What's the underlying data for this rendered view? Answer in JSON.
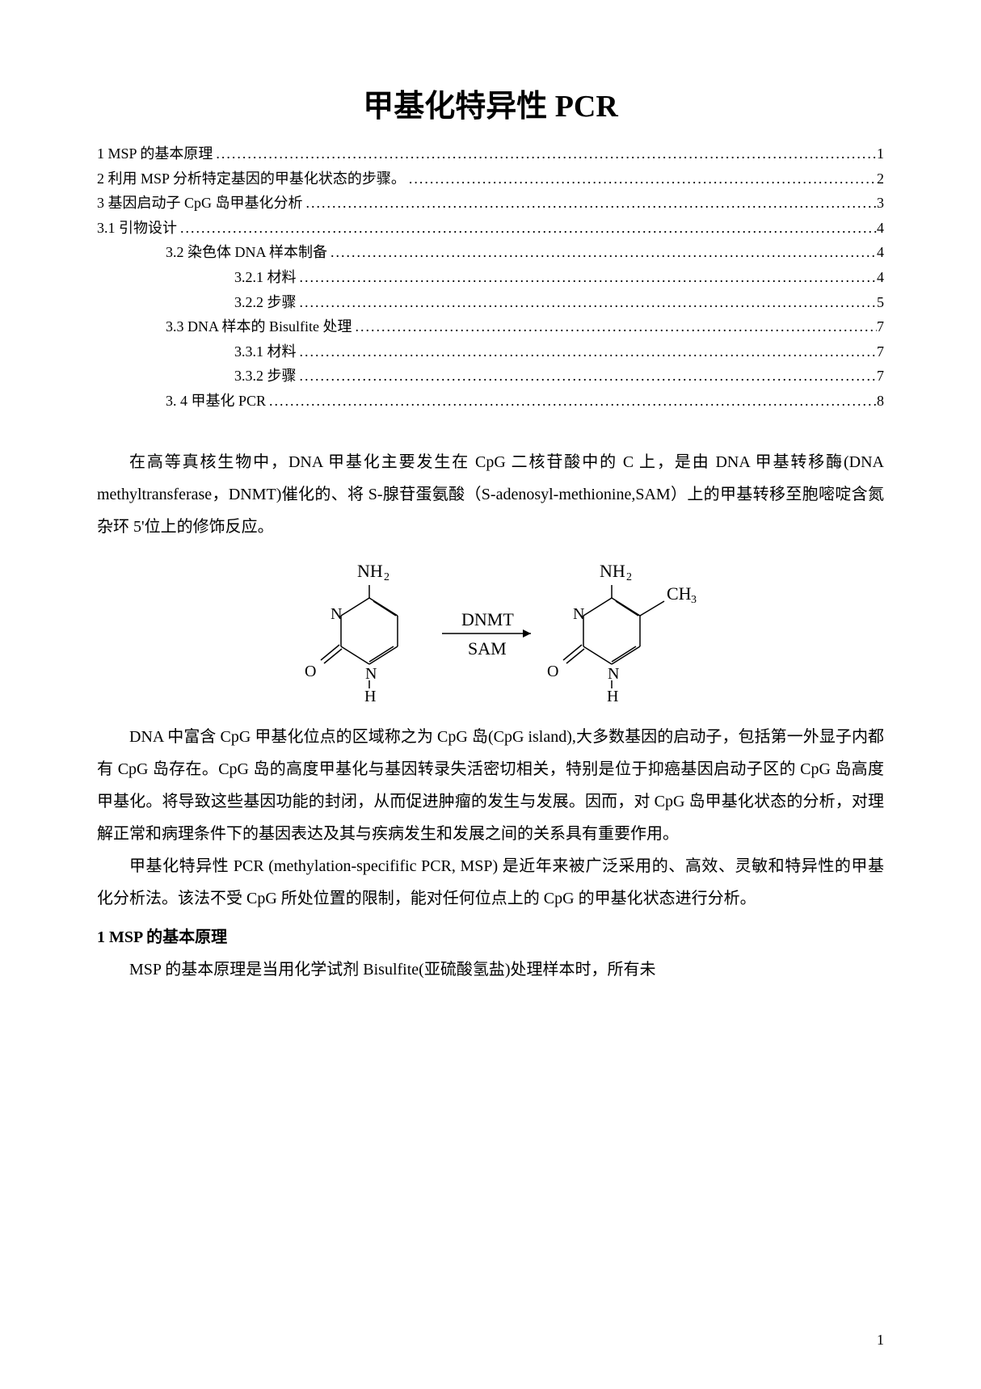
{
  "title_cn": "甲基化特异性 ",
  "title_en": "PCR",
  "toc": [
    {
      "level": 1,
      "label": "1 MSP 的基本原理",
      "page": "1"
    },
    {
      "level": 1,
      "label": "2 利用 MSP 分析特定基因的甲基化状态的步骤。",
      "page": "2"
    },
    {
      "level": 1,
      "label": "3  基因启动子 CpG 岛甲基化分析",
      "page": "3"
    },
    {
      "level": 1,
      "label": "3.1  引物设计",
      "page": "4"
    },
    {
      "level": 2,
      "label": "3.2 染色体 DNA 样本制备",
      "page": "4"
    },
    {
      "level": 3,
      "label": "3.2.1  材料",
      "page": "4"
    },
    {
      "level": 3,
      "label": "3.2.2 步骤",
      "page": "5"
    },
    {
      "level": 2,
      "label": "3.3 DNA 样本的 Bisulfite 处理",
      "page": "7"
    },
    {
      "level": 3,
      "label": "3.3.1 材料",
      "page": "7"
    },
    {
      "level": 3,
      "label": "3.3.2 步骤",
      "page": "7"
    },
    {
      "level": 2,
      "label": "3. 4  甲基化 PCR",
      "page": "8"
    }
  ],
  "para1": "在高等真核生物中，DNA 甲基化主要发生在 CpG 二核苷酸中的 C 上，是由 DNA 甲基转移酶(DNA methyltransferase，DNMT)催化的、将 S-腺苷蛋氨酸（S-adenosyl-methionine,SAM）上的甲基转移至胞嘧啶含氮杂环 5'位上的修饰反应。",
  "para2": "DNA 中富含 CpG 甲基化位点的区域称之为 CpG 岛(CpG island),大多数基因的启动子，包括第一外显子内都有 CpG 岛存在。CpG 岛的高度甲基化与基因转录失活密切相关，特别是位于抑癌基因启动子区的 CpG 岛高度甲基化。将导致这些基因功能的封闭，从而促进肿瘤的发生与发展。因而，对 CpG 岛甲基化状态的分析，对理解正常和病理条件下的基因表达及其与疾病发生和发展之间的关系具有重要作用。",
  "para3": "甲基化特异性 PCR (methylation-specifific PCR, MSP)  是近年来被广泛采用的、高效、灵敏和特异性的甲基化分析法。该法不受 CpG 所处位置的限制，能对任何位点上的 CpG 的甲基化状态进行分析。",
  "heading1": "1 MSP 的基本原理",
  "para4": "MSP 的基本原理是当用化学试剂 Bisulfite(亚硫酸氢盐)处理样本时，所有未",
  "page_num": "1",
  "diagram": {
    "labels": {
      "nh2_left": "NH₂",
      "nh2_right": "NH₂",
      "ch3": "CH₃",
      "enzyme1": "DNMT",
      "enzyme2": "SAM",
      "atoms": {
        "n": "N",
        "o": "O",
        "h": "H"
      }
    },
    "colors": {
      "stroke": "#000000",
      "text": "#000000"
    }
  }
}
